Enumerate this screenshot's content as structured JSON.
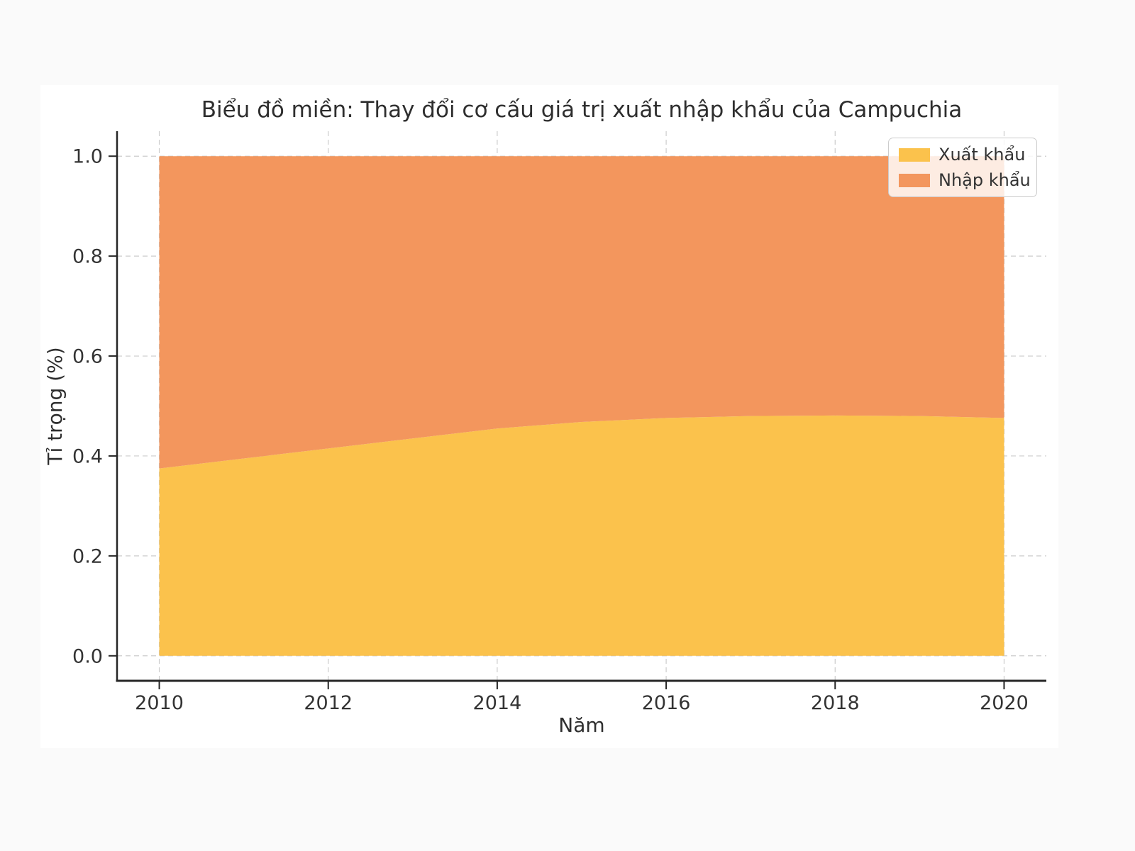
{
  "page": {
    "background_color": "#fafafa",
    "figure_background_color": "#ffffff"
  },
  "chart_data": {
    "type": "area",
    "stacked": true,
    "normalized": true,
    "title": "Biểu đồ miền: Thay đổi cơ cấu giá trị xuất nhập khẩu của Campuchia",
    "xlabel": "Năm",
    "ylabel": "Tỉ trọng (%)",
    "x": [
      2010,
      2011,
      2012,
      2013,
      2014,
      2015,
      2016,
      2017,
      2018,
      2019,
      2020
    ],
    "series": [
      {
        "name": "Xuất khẩu",
        "color": "#FBC24C",
        "values": [
          0.375,
          0.395,
          0.415,
          0.435,
          0.455,
          0.468,
          0.476,
          0.48,
          0.481,
          0.48,
          0.476
        ]
      },
      {
        "name": "Nhập khẩu",
        "color": "#F3965D",
        "values": [
          0.625,
          0.605,
          0.585,
          0.565,
          0.545,
          0.532,
          0.524,
          0.52,
          0.519,
          0.52,
          0.524
        ]
      }
    ],
    "x_ticks": [
      2010,
      2012,
      2014,
      2016,
      2018,
      2020
    ],
    "x_tick_labels": [
      "2010",
      "2012",
      "2014",
      "2016",
      "2018",
      "2020"
    ],
    "y_ticks": [
      0.0,
      0.2,
      0.4,
      0.6,
      0.8,
      1.0
    ],
    "y_tick_labels": [
      "0.0",
      "0.2",
      "0.4",
      "0.6",
      "0.8",
      "1.0"
    ],
    "xlim": [
      2009.5,
      2020.5
    ],
    "ylim": [
      -0.05,
      1.05
    ],
    "grid": true,
    "grid_style": "dashed",
    "grid_color": "#cccccc",
    "spine_color": "#262626",
    "tick_label_color": "#333333",
    "legend_position": "upper right"
  }
}
